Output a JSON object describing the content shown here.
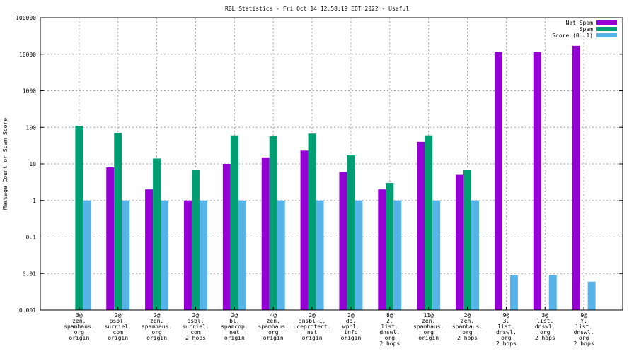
{
  "chart_data": {
    "type": "bar",
    "title": "RBL Statistics - Fri Oct 14 12:58:19 EDT 2022 - Useful",
    "ylabel": "Message Count or Spam Score",
    "xlabel": "",
    "yscale": "log",
    "ylim": [
      0.001,
      100000
    ],
    "yticks": [
      "0.001",
      "0.01",
      "0.1",
      "1",
      "10",
      "100",
      "1000",
      "10000",
      "100000"
    ],
    "grid": true,
    "legend_position": "top-right",
    "categories": [
      [
        "3@",
        "zen.",
        "spamhaus.",
        "org",
        "origin"
      ],
      [
        "2@",
        "psbl.",
        "surriel.",
        "com",
        "origin"
      ],
      [
        "2@",
        "zen.",
        "spamhaus.",
        "org",
        "origin"
      ],
      [
        "2@",
        "psbl.",
        "surriel.",
        "com",
        "2 hops"
      ],
      [
        "2@",
        "bl.",
        "spamcop.",
        "net",
        "origin"
      ],
      [
        "4@",
        "zen.",
        "spamhaus.",
        "org",
        "origin"
      ],
      [
        "2@",
        "dnsbl-1.",
        "uceprotect.",
        "net",
        "origin"
      ],
      [
        "2@",
        "db.",
        "wpbl.",
        "info",
        "origin"
      ],
      [
        "8@",
        "2.",
        "list.",
        "dnswl.",
        "org",
        "2 hops"
      ],
      [
        "11@",
        "zen.",
        "spamhaus.",
        "org",
        "origin"
      ],
      [
        "2@",
        "zen.",
        "spamhaus.",
        "org",
        "2 hops"
      ],
      [
        "9@",
        "3.",
        "list.",
        "dnswl.",
        "org",
        "2 hops"
      ],
      [
        "3@",
        "list.",
        "dnswl.",
        "org",
        "2 hops"
      ],
      [
        "9@",
        "Y.",
        "list.",
        "dnswl.",
        "org",
        "2 hops"
      ]
    ],
    "series": [
      {
        "name": "Not Spam",
        "color": "#9400d3",
        "values": [
          null,
          8,
          2,
          1,
          10,
          15,
          23,
          6,
          2,
          40,
          5,
          11500,
          11500,
          17000
        ]
      },
      {
        "name": "Spam",
        "color": "#009e73",
        "values": [
          110,
          70,
          14,
          7,
          60,
          57,
          67,
          17,
          3,
          60,
          7,
          null,
          null,
          null
        ]
      },
      {
        "name": "Score (0..1)",
        "color": "#56b4e9",
        "values": [
          1,
          1,
          1,
          1,
          1,
          1,
          1,
          1,
          1,
          1,
          1,
          0.009,
          0.009,
          0.006
        ]
      }
    ]
  }
}
